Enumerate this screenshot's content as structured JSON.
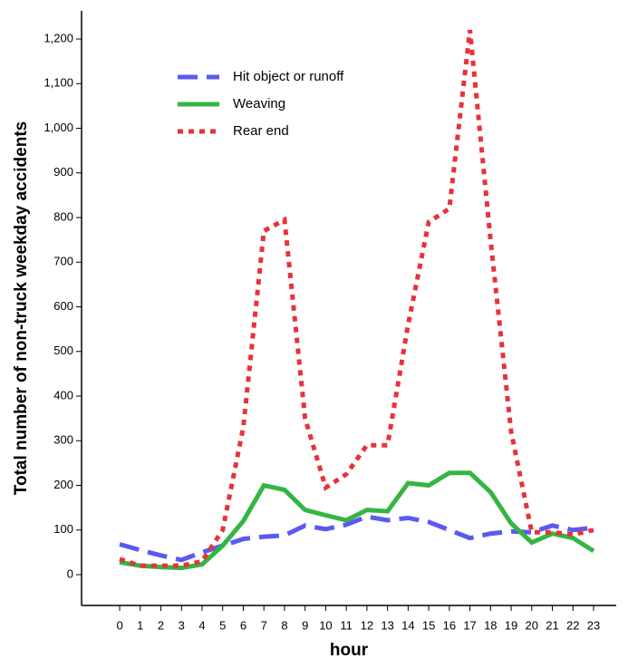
{
  "chart_data": {
    "type": "line",
    "xlabel": "hour",
    "ylabel": "Total number of non-truck weekday accidents",
    "x": [
      0,
      1,
      2,
      3,
      4,
      5,
      6,
      7,
      8,
      9,
      10,
      11,
      12,
      13,
      14,
      15,
      16,
      17,
      18,
      19,
      20,
      21,
      22,
      23
    ],
    "series": [
      {
        "name": "Hit object or runoff",
        "color": "#5a5af2",
        "dash": "dashed",
        "values": [
          68,
          55,
          43,
          33,
          50,
          65,
          80,
          85,
          88,
          110,
          102,
          112,
          130,
          122,
          127,
          118,
          100,
          82,
          92,
          97,
          95,
          110,
          100,
          105
        ]
      },
      {
        "name": "Weaving",
        "color": "#35b544",
        "dash": "solid",
        "values": [
          28,
          20,
          17,
          15,
          23,
          65,
          120,
          200,
          190,
          145,
          133,
          122,
          145,
          142,
          205,
          200,
          228,
          228,
          185,
          115,
          72,
          92,
          82,
          53
        ]
      },
      {
        "name": "Rear end",
        "color": "#e8323a",
        "dash": "dotted",
        "values": [
          35,
          20,
          20,
          20,
          30,
          100,
          330,
          770,
          795,
          350,
          195,
          225,
          290,
          290,
          560,
          790,
          820,
          1220,
          750,
          320,
          95,
          95,
          90,
          100
        ]
      }
    ],
    "xlim": [
      -1.85,
      24.1
    ],
    "ylim": [
      -69,
      1263
    ],
    "xticks": [
      0,
      1,
      2,
      3,
      4,
      5,
      6,
      7,
      8,
      9,
      10,
      11,
      12,
      13,
      14,
      15,
      16,
      17,
      18,
      19,
      20,
      21,
      22,
      23
    ],
    "yticks": [
      0,
      100,
      200,
      300,
      400,
      500,
      600,
      700,
      800,
      900,
      {
        "value": 1000,
        "label": "1,000"
      },
      {
        "value": 1100,
        "label": "1,100"
      },
      {
        "value": 1200,
        "label": "1,200"
      }
    ],
    "legend": "upper-left"
  }
}
